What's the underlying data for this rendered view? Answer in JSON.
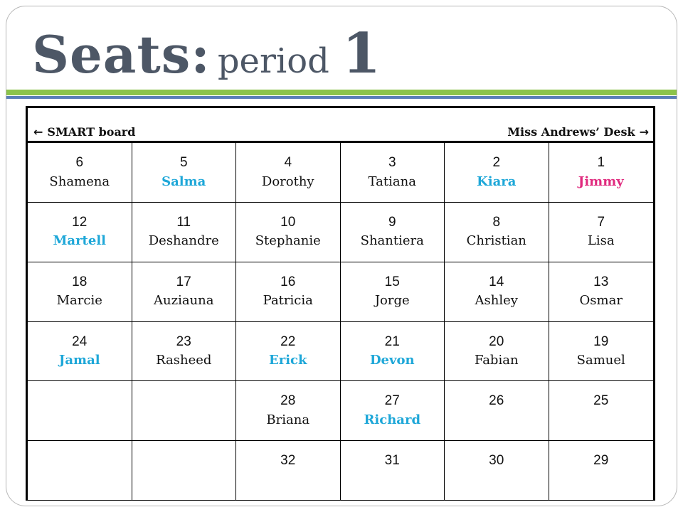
{
  "title": {
    "main": "Seats:",
    "sub": "period",
    "number": "1"
  },
  "header": {
    "left": "SMART board",
    "right": "Miss Andrews’ Desk"
  },
  "colors": {
    "title": "#4d5766",
    "green_rule": "#8bc34a",
    "blue_rule": "#5b7fb8",
    "blue_name": "#1ea7d8",
    "pink_name": "#e02a7e"
  },
  "rows": [
    [
      {
        "seat": "6",
        "name": "Shamena",
        "style": "plain"
      },
      {
        "seat": "5",
        "name": "Salma",
        "style": "blue"
      },
      {
        "seat": "4",
        "name": "Dorothy",
        "style": "plain"
      },
      {
        "seat": "3",
        "name": "Tatiana",
        "style": "plain"
      },
      {
        "seat": "2",
        "name": "Kiara",
        "style": "blue"
      },
      {
        "seat": "1",
        "name": "Jimmy",
        "style": "pink"
      }
    ],
    [
      {
        "seat": "12",
        "name": "Martell",
        "style": "blue"
      },
      {
        "seat": "11",
        "name": "Deshandre",
        "style": "plain"
      },
      {
        "seat": "10",
        "name": "Stephanie",
        "style": "plain"
      },
      {
        "seat": "9",
        "name": "Shantiera",
        "style": "plain"
      },
      {
        "seat": "8",
        "name": "Christian",
        "style": "plain"
      },
      {
        "seat": "7",
        "name": "Lisa",
        "style": "plain"
      }
    ],
    [
      {
        "seat": "18",
        "name": "Marcie",
        "style": "plain"
      },
      {
        "seat": "17",
        "name": "Auziauna",
        "style": "plain"
      },
      {
        "seat": "16",
        "name": "Patricia",
        "style": "plain"
      },
      {
        "seat": "15",
        "name": "Jorge",
        "style": "plain"
      },
      {
        "seat": "14",
        "name": "Ashley",
        "style": "plain"
      },
      {
        "seat": "13",
        "name": "Osmar",
        "style": "plain"
      }
    ],
    [
      {
        "seat": "24",
        "name": "Jamal",
        "style": "blue"
      },
      {
        "seat": "23",
        "name": "Rasheed",
        "style": "plain"
      },
      {
        "seat": "22",
        "name": "Erick",
        "style": "blue"
      },
      {
        "seat": "21",
        "name": "Devon",
        "style": "blue"
      },
      {
        "seat": "20",
        "name": "Fabian",
        "style": "plain"
      },
      {
        "seat": "19",
        "name": "Samuel",
        "style": "plain"
      }
    ],
    [
      {
        "seat": "",
        "name": "",
        "style": "plain"
      },
      {
        "seat": "",
        "name": "",
        "style": "plain"
      },
      {
        "seat": "28",
        "name": "Briana",
        "style": "plain"
      },
      {
        "seat": "27",
        "name": "Richard",
        "style": "blue"
      },
      {
        "seat": "26",
        "name": "",
        "style": "plain"
      },
      {
        "seat": "25",
        "name": "",
        "style": "plain"
      }
    ],
    [
      {
        "seat": "",
        "name": "",
        "style": "plain"
      },
      {
        "seat": "",
        "name": "",
        "style": "plain"
      },
      {
        "seat": "32",
        "name": "",
        "style": "plain"
      },
      {
        "seat": "31",
        "name": "",
        "style": "plain"
      },
      {
        "seat": "30",
        "name": "",
        "style": "plain"
      },
      {
        "seat": "29",
        "name": "",
        "style": "plain"
      }
    ]
  ]
}
